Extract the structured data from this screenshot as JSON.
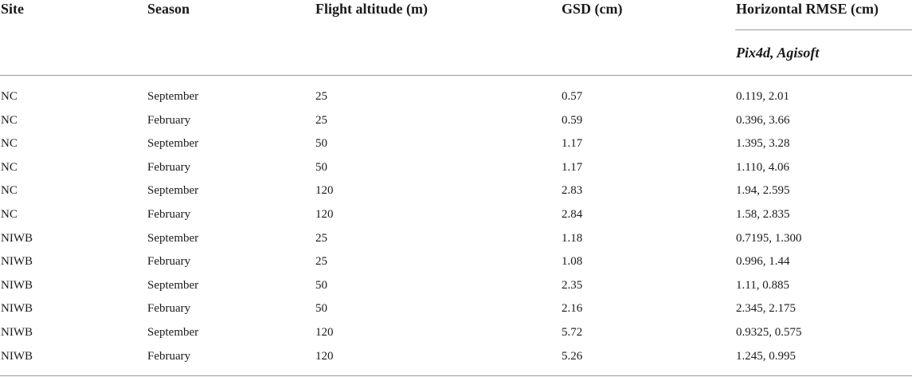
{
  "table": {
    "headers": {
      "site": "Site",
      "season": "Season",
      "altitude": "Flight altitude (m)",
      "gsd": "GSD (cm)",
      "rmse": "Horizontal RMSE (cm)",
      "rmse_sub": "Pix4d, Agisoft"
    },
    "rows": [
      {
        "site": "NC",
        "season": "September",
        "altitude": "25",
        "gsd": "0.57",
        "rmse": "0.119, 2.01"
      },
      {
        "site": "NC",
        "season": "February",
        "altitude": "25",
        "gsd": "0.59",
        "rmse": "0.396, 3.66"
      },
      {
        "site": "NC",
        "season": "September",
        "altitude": "50",
        "gsd": "1.17",
        "rmse": "1.395, 3.28"
      },
      {
        "site": "NC",
        "season": "February",
        "altitude": "50",
        "gsd": "1.17",
        "rmse": "1.110, 4.06"
      },
      {
        "site": "NC",
        "season": "September",
        "altitude": "120",
        "gsd": "2.83",
        "rmse": "1.94, 2.595"
      },
      {
        "site": "NC",
        "season": "February",
        "altitude": "120",
        "gsd": "2.84",
        "rmse": "1.58, 2.835"
      },
      {
        "site": "NIWB",
        "season": "September",
        "altitude": "25",
        "gsd": "1.18",
        "rmse": "0.7195, 1.300"
      },
      {
        "site": "NIWB",
        "season": "February",
        "altitude": "25",
        "gsd": "1.08",
        "rmse": "0.996, 1.44"
      },
      {
        "site": "NIWB",
        "season": "September",
        "altitude": "50",
        "gsd": "2.35",
        "rmse": "1.11, 0.885"
      },
      {
        "site": "NIWB",
        "season": "February",
        "altitude": "50",
        "gsd": "2.16",
        "rmse": "2.345, 2.175"
      },
      {
        "site": "NIWB",
        "season": "September",
        "altitude": "120",
        "gsd": "5.72",
        "rmse": "0.9325, 0.575"
      },
      {
        "site": "NIWB",
        "season": "February",
        "altitude": "120",
        "gsd": "5.26",
        "rmse": "1.245, 0.995"
      }
    ]
  }
}
